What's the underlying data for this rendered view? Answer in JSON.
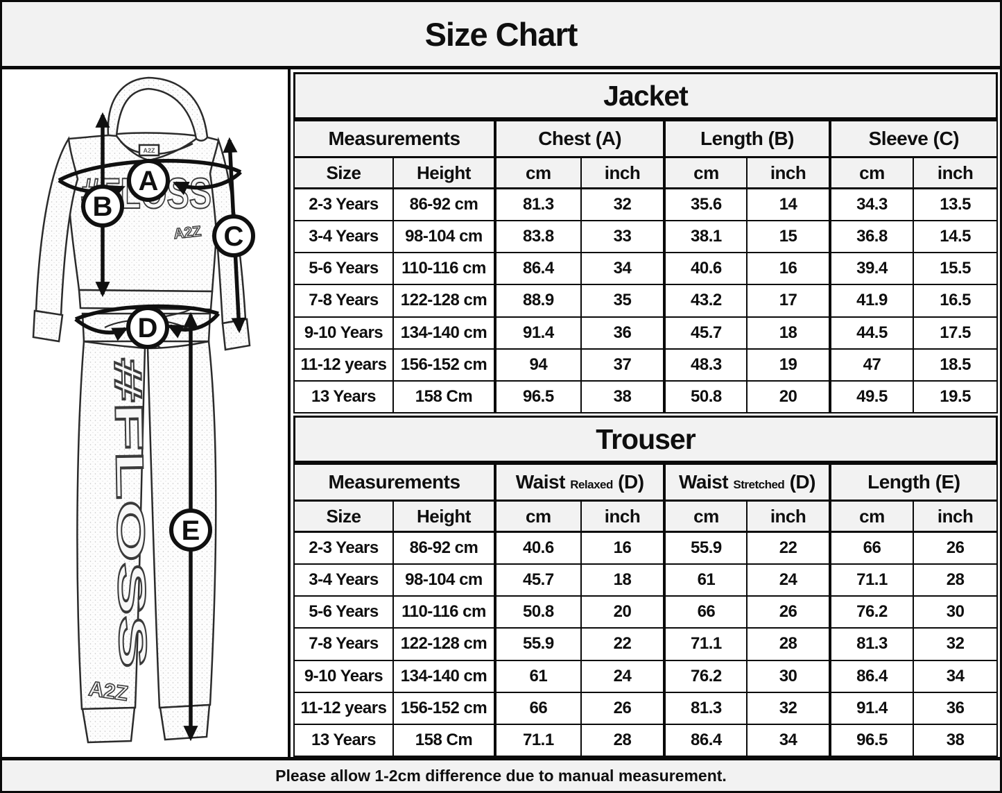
{
  "title": "Size Chart",
  "footer": "Please allow 1-2cm difference due to manual measurement.",
  "colors": {
    "header_bg": "#f2f2f2",
    "cell_bg": "#ffffff",
    "border": "#0a0a0a",
    "text": "#0f0f0f"
  },
  "diagram": {
    "labels": {
      "a": "A",
      "b": "B",
      "c": "C",
      "d": "D",
      "e": "E"
    },
    "chest_text": "#FLOSS",
    "leg_text": "#FLOSS",
    "brand": "A2Z",
    "neck_tag": "A2Z"
  },
  "jacket": {
    "section_title": "Jacket",
    "group_headers": [
      {
        "label": "Measurements"
      },
      {
        "label": "Chest",
        "ref": "(A)"
      },
      {
        "label": "Length",
        "ref": "(B)"
      },
      {
        "label": "Sleeve",
        "ref": "(C)"
      }
    ],
    "sub_headers": [
      "Size",
      "Height",
      "cm",
      "inch",
      "cm",
      "inch",
      "cm",
      "inch"
    ],
    "rows": [
      [
        "2-3 Years",
        "86-92 cm",
        "81.3",
        "32",
        "35.6",
        "14",
        "34.3",
        "13.5"
      ],
      [
        "3-4 Years",
        "98-104 cm",
        "83.8",
        "33",
        "38.1",
        "15",
        "36.8",
        "14.5"
      ],
      [
        "5-6 Years",
        "110-116 cm",
        "86.4",
        "34",
        "40.6",
        "16",
        "39.4",
        "15.5"
      ],
      [
        "7-8 Years",
        "122-128 cm",
        "88.9",
        "35",
        "43.2",
        "17",
        "41.9",
        "16.5"
      ],
      [
        "9-10 Years",
        "134-140 cm",
        "91.4",
        "36",
        "45.7",
        "18",
        "44.5",
        "17.5"
      ],
      [
        "11-12 years",
        "156-152 cm",
        "94",
        "37",
        "48.3",
        "19",
        "47",
        "18.5"
      ],
      [
        "13 Years",
        "158 Cm",
        "96.5",
        "38",
        "50.8",
        "20",
        "49.5",
        "19.5"
      ]
    ]
  },
  "trouser": {
    "section_title": "Trouser",
    "group_headers": [
      {
        "label": "Measurements"
      },
      {
        "label": "Waist",
        "sub": "Relaxed",
        "ref": "(D)"
      },
      {
        "label": "Waist",
        "sub": "Stretched",
        "ref": "(D)"
      },
      {
        "label": "Length",
        "ref": "(E)"
      }
    ],
    "sub_headers": [
      "Size",
      "Height",
      "cm",
      "inch",
      "cm",
      "inch",
      "cm",
      "inch"
    ],
    "rows": [
      [
        "2-3 Years",
        "86-92 cm",
        "40.6",
        "16",
        "55.9",
        "22",
        "66",
        "26"
      ],
      [
        "3-4 Years",
        "98-104 cm",
        "45.7",
        "18",
        "61",
        "24",
        "71.1",
        "28"
      ],
      [
        "5-6 Years",
        "110-116 cm",
        "50.8",
        "20",
        "66",
        "26",
        "76.2",
        "30"
      ],
      [
        "7-8 Years",
        "122-128 cm",
        "55.9",
        "22",
        "71.1",
        "28",
        "81.3",
        "32"
      ],
      [
        "9-10 Years",
        "134-140 cm",
        "61",
        "24",
        "76.2",
        "30",
        "86.4",
        "34"
      ],
      [
        "11-12 years",
        "156-152 cm",
        "66",
        "26",
        "81.3",
        "32",
        "91.4",
        "36"
      ],
      [
        "13 Years",
        "158 Cm",
        "71.1",
        "28",
        "86.4",
        "34",
        "96.5",
        "38"
      ]
    ]
  }
}
